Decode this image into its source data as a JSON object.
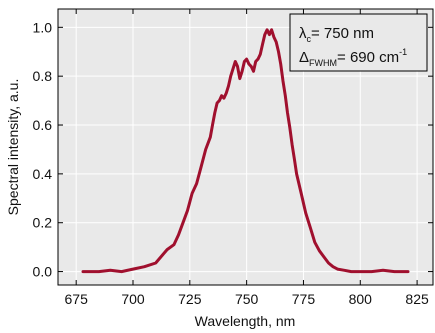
{
  "chart_data": {
    "type": "line",
    "xlabel": "Wavelength, nm",
    "ylabel": "Spectral intensity, a.u.",
    "xlim": [
      667,
      832
    ],
    "ylim": [
      -0.055,
      1.075
    ],
    "x_ticks": [
      675,
      700,
      725,
      750,
      775,
      800,
      825
    ],
    "y_ticks": [
      0.0,
      0.2,
      0.4,
      0.6,
      0.8,
      1.0
    ],
    "y_tick_labels": [
      "0.0",
      "0.2",
      "0.4",
      "0.6",
      "0.8",
      "1.0"
    ],
    "grid": true,
    "background_color": "#e9e9e9",
    "grid_color": "#ffffff",
    "series": [
      {
        "color": "#a0102e",
        "x": [
          678,
          685,
          690,
          695,
          700,
          705,
          710,
          715,
          718,
          720,
          722,
          724,
          726,
          728,
          730,
          732,
          734,
          735,
          736,
          737,
          738,
          739,
          740,
          741,
          742,
          743,
          744,
          745,
          746,
          747,
          748,
          749,
          750,
          751,
          752,
          753,
          754,
          755,
          756,
          757,
          758,
          759,
          760,
          761,
          762,
          763,
          764,
          765,
          766,
          767,
          768,
          769,
          770,
          771,
          772,
          774,
          776,
          778,
          780,
          782,
          784,
          786,
          788,
          790,
          793,
          796,
          800,
          805,
          810,
          815,
          821
        ],
        "y": [
          0.0,
          0.0,
          0.005,
          0.0,
          0.01,
          0.02,
          0.035,
          0.09,
          0.11,
          0.15,
          0.2,
          0.25,
          0.32,
          0.36,
          0.43,
          0.5,
          0.55,
          0.6,
          0.65,
          0.69,
          0.7,
          0.72,
          0.71,
          0.73,
          0.76,
          0.8,
          0.83,
          0.86,
          0.84,
          0.79,
          0.82,
          0.86,
          0.87,
          0.85,
          0.84,
          0.82,
          0.86,
          0.87,
          0.89,
          0.93,
          0.97,
          0.99,
          0.97,
          0.99,
          0.96,
          0.94,
          0.9,
          0.85,
          0.78,
          0.72,
          0.65,
          0.59,
          0.52,
          0.46,
          0.4,
          0.32,
          0.24,
          0.18,
          0.12,
          0.085,
          0.06,
          0.035,
          0.02,
          0.01,
          0.005,
          0.0,
          0.0,
          0.0,
          0.005,
          0.0,
          0.0
        ]
      }
    ],
    "legend": {
      "position": "top-right",
      "line1_prefix": "λ",
      "line1_sub": "c",
      "line1_value": "= 750 nm",
      "line2_prefix": "Δ",
      "line2_sub": "FWHM",
      "line2_value": "= 690 cm",
      "line2_sup": "-1"
    }
  }
}
